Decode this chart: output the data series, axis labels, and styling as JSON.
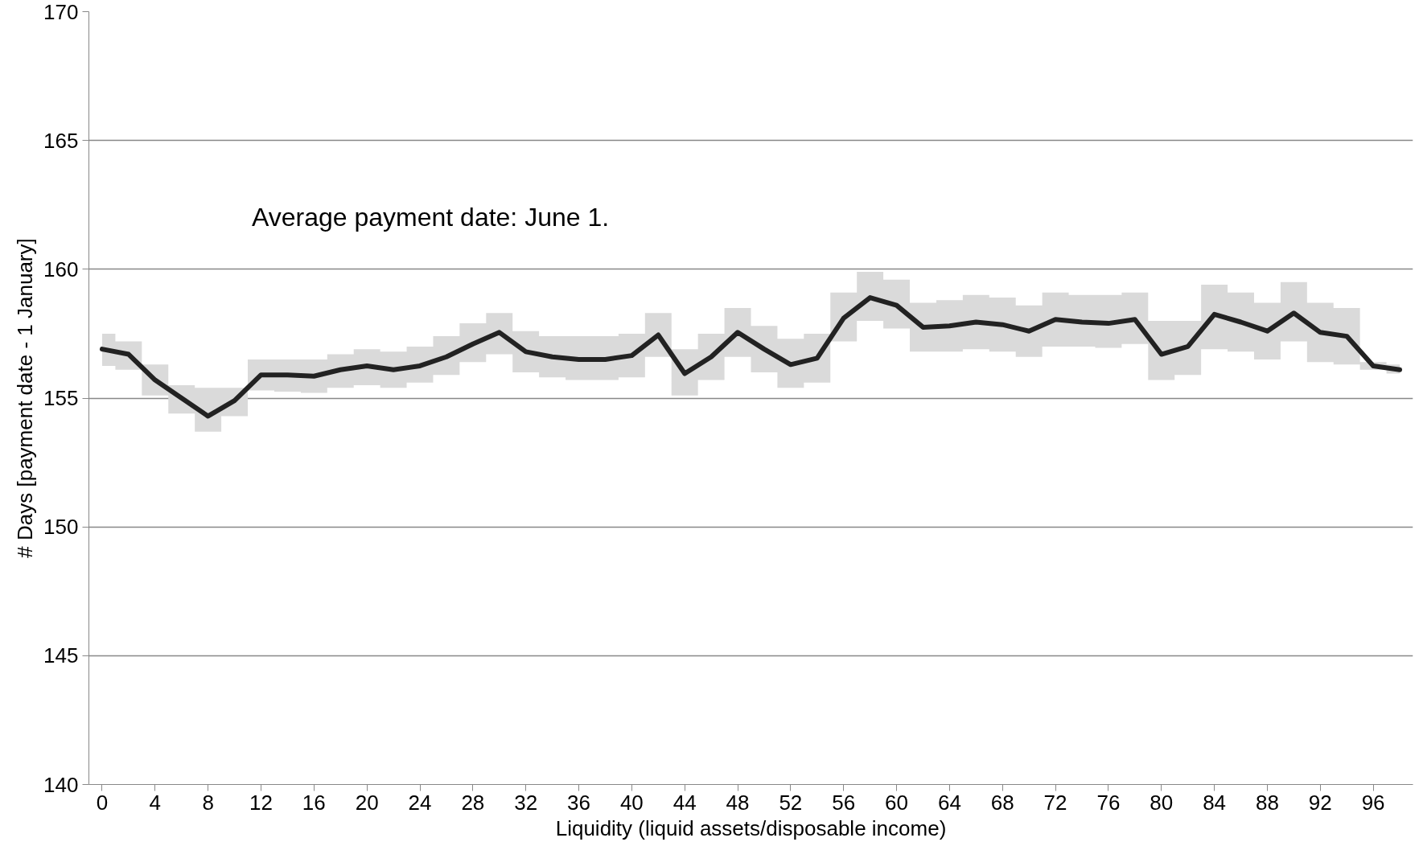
{
  "chart_data": {
    "type": "line",
    "xlabel": "Liquidity (liquid assets/disposable income)",
    "ylabel": "# Days [payment date - 1 January]",
    "x": [
      0,
      2,
      4,
      6,
      8,
      10,
      12,
      14,
      16,
      18,
      20,
      22,
      24,
      26,
      28,
      30,
      32,
      34,
      36,
      38,
      40,
      42,
      44,
      46,
      48,
      50,
      52,
      54,
      56,
      58,
      60,
      62,
      64,
      66,
      68,
      70,
      72,
      74,
      76,
      78,
      80,
      82,
      84,
      86,
      88,
      90,
      92,
      94,
      96,
      98
    ],
    "xlim": [
      -1,
      99
    ],
    "xticks": [
      0,
      4,
      8,
      12,
      16,
      20,
      24,
      28,
      32,
      36,
      40,
      44,
      48,
      52,
      56,
      60,
      64,
      68,
      72,
      76,
      80,
      84,
      88,
      92,
      96
    ],
    "series": [
      {
        "color": "#222222",
        "values": [
          156.9,
          156.7,
          155.7,
          155.0,
          154.3,
          154.9,
          155.9,
          155.9,
          155.85,
          156.1,
          156.25,
          156.1,
          156.25,
          156.6,
          157.1,
          157.55,
          156.8,
          156.6,
          156.5,
          156.5,
          156.65,
          157.45,
          155.95,
          156.6,
          157.55,
          156.9,
          156.3,
          156.55,
          158.1,
          158.9,
          158.6,
          157.75,
          157.8,
          157.95,
          157.85,
          157.6,
          158.05,
          157.95,
          157.9,
          158.05,
          156.7,
          157.0,
          158.25,
          157.95,
          157.6,
          158.3,
          157.55,
          157.4,
          156.25,
          156.1
        ],
        "lower": [
          156.25,
          156.1,
          155.1,
          154.4,
          153.7,
          154.3,
          155.3,
          155.25,
          155.2,
          155.4,
          155.5,
          155.4,
          155.6,
          155.9,
          156.4,
          156.7,
          156.0,
          155.8,
          155.7,
          155.7,
          155.8,
          156.6,
          155.1,
          155.7,
          156.6,
          156.0,
          155.4,
          155.6,
          157.2,
          158.0,
          157.7,
          156.8,
          156.8,
          156.9,
          156.8,
          156.6,
          157.0,
          157.0,
          156.95,
          157.1,
          155.7,
          155.9,
          156.9,
          156.8,
          156.5,
          157.2,
          156.4,
          156.3,
          156.1,
          155.95
        ],
        "upper": [
          157.5,
          157.2,
          156.3,
          155.5,
          155.4,
          155.4,
          156.5,
          156.5,
          156.5,
          156.7,
          156.9,
          156.8,
          157.0,
          157.4,
          157.9,
          158.3,
          157.6,
          157.4,
          157.4,
          157.4,
          157.5,
          158.3,
          156.9,
          157.5,
          158.5,
          157.8,
          157.3,
          157.5,
          159.1,
          159.9,
          159.6,
          158.7,
          158.8,
          159.0,
          158.9,
          158.6,
          159.1,
          159.0,
          159.0,
          159.1,
          158.0,
          158.0,
          159.4,
          159.1,
          158.7,
          159.5,
          158.7,
          158.5,
          156.4,
          156.3
        ]
      }
    ],
    "ylim": [
      140,
      170
    ],
    "yticks": [
      140,
      145,
      150,
      155,
      160,
      165,
      170
    ],
    "grid": "y",
    "legend": false,
    "marker": "none",
    "line_style": "solid",
    "annotations": [
      "Average payment date: June 1."
    ]
  }
}
